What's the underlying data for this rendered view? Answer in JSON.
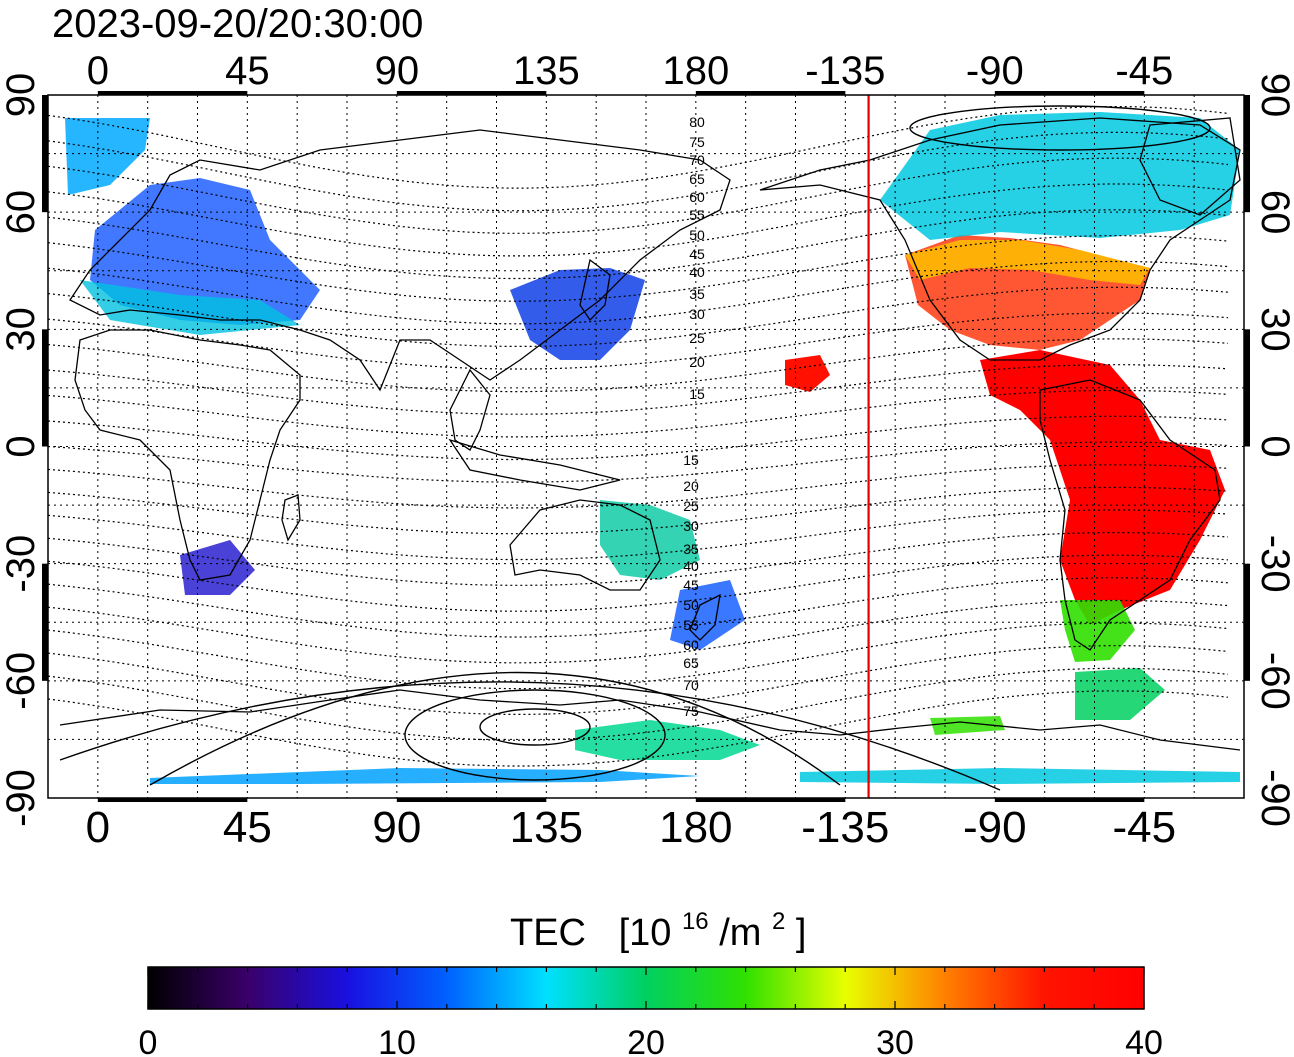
{
  "timestamp": "2023-09-20/20:30:00",
  "map": {
    "lon_ticks": [
      "0",
      "45",
      "90",
      "135",
      "180",
      "-135",
      "-90",
      "-45"
    ],
    "lat_ticks": [
      "90",
      "60",
      "30",
      "0",
      "-30",
      "-60",
      "-90"
    ],
    "marker_longitude": -128,
    "marker_color": "#e00000",
    "grid": "dotted"
  },
  "contours": {
    "north_labels": [
      "80",
      "75",
      "70",
      "65",
      "60",
      "55",
      "50",
      "45",
      "40",
      "35",
      "30",
      "25",
      "20",
      "15"
    ],
    "south_labels": [
      "15",
      "20",
      "25",
      "30",
      "35",
      "40",
      "45",
      "50",
      "55",
      "60",
      "65",
      "70",
      "75"
    ]
  },
  "colorbar": {
    "title": "TEC",
    "unit": "[10",
    "unit_exp": "16",
    "unit_tail": "/m",
    "unit_exp2": "2",
    "unit_close": "]",
    "min": 0,
    "max": 40,
    "tick_labels": [
      "0",
      "10",
      "20",
      "30",
      "40"
    ],
    "colors": [
      "#000000",
      "#3a006a",
      "#1a10e0",
      "#0060ff",
      "#00e0ff",
      "#00d060",
      "#30e000",
      "#e8ff00",
      "#ff8000",
      "#ff1400",
      "#ff0000"
    ]
  },
  "tec_regions": [
    {
      "name": "north-america-high",
      "value": 35
    },
    {
      "name": "south-america",
      "value": 40
    },
    {
      "name": "europe",
      "value": 10
    },
    {
      "name": "east-asia",
      "value": 14
    },
    {
      "name": "australia",
      "value": 18
    },
    {
      "name": "antarctica-pacific",
      "value": 17
    }
  ]
}
